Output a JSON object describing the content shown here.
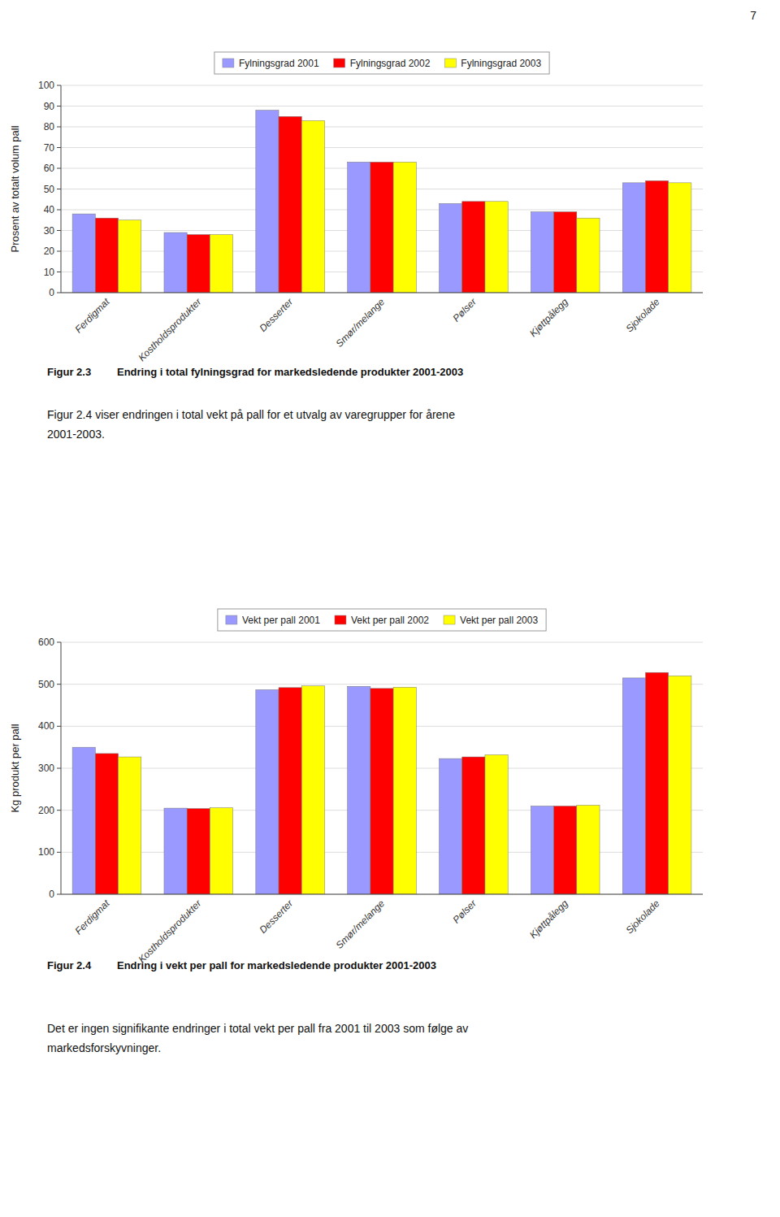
{
  "chart_data": [
    {
      "type": "bar",
      "title": "Endring i total fylningsgrad for markedsledende produkter 2001-2003",
      "ylabel": "Prosent av totalt volum pall",
      "categories": [
        "Ferdigmat",
        "Kostholdsprodukter",
        "Desserter",
        "Smør/melange",
        "Pølser",
        "Kjøttpålegg",
        "Sjokolade"
      ],
      "series": [
        {
          "name": "Fylningsgrad 2001",
          "color": "#9999FF",
          "values": [
            38,
            29,
            88,
            63,
            43,
            39,
            53
          ]
        },
        {
          "name": "Fylningsgrad 2002",
          "color": "#FF0000",
          "values": [
            36,
            28,
            85,
            63,
            44,
            39,
            54
          ]
        },
        {
          "name": "Fylningsgrad 2003",
          "color": "#FFFF00",
          "values": [
            35,
            28,
            83,
            63,
            44,
            36,
            53
          ]
        }
      ],
      "ylim": [
        0,
        100
      ],
      "yticks": [
        0,
        10,
        20,
        30,
        40,
        50,
        60,
        70,
        80,
        90,
        100
      ],
      "grid": true,
      "legend": "top",
      "annotations": [
        "7",
        "Figur 2.3",
        "Figur 2.4 viser endringen i total vekt på pall for et utvalg av varegrupper for årene\n2001-2003."
      ]
    },
    {
      "type": "bar",
      "title": "Endring i vekt per pall for markedsledende produkter 2001-2003",
      "ylabel": "Kg produkt per pall",
      "categories": [
        "Ferdigmat",
        "Kostholdsprodukter",
        "Desserter",
        "Smør/melange",
        "Pølser",
        "Kjøttpålegg",
        "Sjokolade"
      ],
      "series": [
        {
          "name": "Vekt per pall 2001",
          "color": "#9999FF",
          "values": [
            350,
            205,
            487,
            495,
            323,
            210,
            515
          ]
        },
        {
          "name": "Vekt per pall 2002",
          "color": "#FF0000",
          "values": [
            335,
            204,
            492,
            490,
            327,
            210,
            528
          ]
        },
        {
          "name": "Vekt per pall 2003",
          "color": "#FFFF00",
          "values": [
            327,
            206,
            496,
            493,
            332,
            212,
            520
          ]
        }
      ],
      "ylim": [
        0,
        600
      ],
      "yticks": [
        0,
        100,
        200,
        300,
        400,
        500,
        600
      ],
      "grid": true,
      "legend": "top",
      "annotations": [
        "Figur 2.4",
        "Det er ingen signifikante endringer i total vekt per pall fra 2001 til 2003 som følge av\nmarkedsforskyvninger."
      ]
    }
  ]
}
